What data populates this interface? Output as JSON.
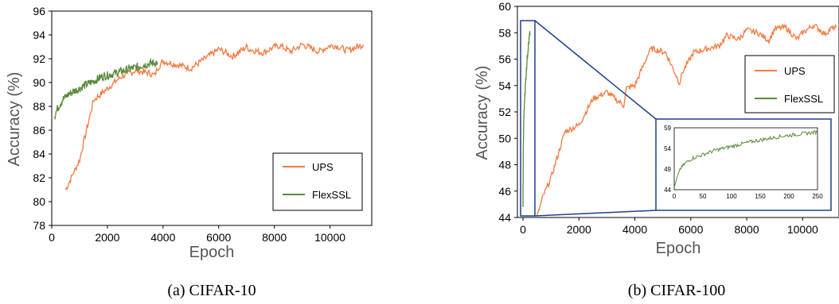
{
  "chart_data": [
    {
      "type": "line",
      "caption": "(a) CIFAR-10",
      "xlabel": "Epoch",
      "ylabel": "Accuracy (%)",
      "xlim": [
        0,
        11500
      ],
      "ylim": [
        78,
        96
      ],
      "xticks": [
        0,
        2000,
        4000,
        6000,
        8000,
        10000
      ],
      "yticks": [
        78,
        80,
        82,
        84,
        86,
        88,
        90,
        92,
        94,
        96
      ],
      "grid": false,
      "legend": "bottom-right",
      "series": [
        {
          "name": "UPS",
          "color": "#f47a40",
          "x": [
            500,
            700,
            1000,
            1500,
            2000,
            2500,
            3000,
            3500,
            3700,
            3800,
            4000,
            4500,
            5000,
            5500,
            6000,
            6100,
            6500,
            7000,
            7100,
            7600,
            8000,
            8200,
            8600,
            9000,
            9200,
            9600,
            10000,
            10200,
            10600,
            11000,
            11200
          ],
          "y": [
            81.0,
            82.0,
            83.5,
            88.5,
            89.5,
            90.5,
            91.0,
            90.8,
            90.6,
            91.2,
            91.8,
            91.5,
            91.2,
            92.0,
            92.8,
            92.7,
            92.2,
            93.0,
            92.8,
            92.5,
            93.0,
            93.1,
            92.6,
            93.2,
            93.0,
            92.6,
            93.1,
            93.1,
            92.7,
            93.0,
            93.2
          ]
        },
        {
          "name": "FlexSSL",
          "color": "#5a8a3a",
          "x": [
            100,
            200,
            400,
            600,
            800,
            1000,
            1200,
            1500,
            1800,
            2000,
            2300,
            2600,
            2900,
            3200,
            3500,
            3800
          ],
          "y": [
            87.2,
            87.8,
            88.6,
            89.0,
            89.3,
            89.5,
            89.8,
            90.1,
            90.5,
            90.6,
            90.8,
            91.0,
            91.2,
            91.4,
            91.6,
            91.7
          ]
        }
      ]
    },
    {
      "type": "line",
      "caption": "(b) CIFAR-100",
      "xlabel": "Epoch",
      "ylabel": "Accuracy (%)",
      "xlim": [
        -200,
        11300
      ],
      "ylim": [
        44,
        60
      ],
      "xticks": [
        0,
        2000,
        4000,
        6000,
        8000,
        10000
      ],
      "yticks": [
        44,
        46,
        48,
        50,
        52,
        54,
        56,
        58,
        60
      ],
      "grid": false,
      "legend": "upper-right",
      "series": [
        {
          "name": "UPS",
          "color": "#f47a40",
          "x": [
            500,
            700,
            1000,
            1500,
            2000,
            2500,
            3000,
            3600,
            3700,
            4000,
            4500,
            4600,
            5100,
            5600,
            5700,
            6100,
            6600,
            7000,
            7300,
            7700,
            8000,
            8400,
            8800,
            9000,
            9400,
            9800,
            10000,
            10400,
            10800,
            11000,
            11200
          ],
          "y": [
            44.0,
            45.5,
            47.0,
            50.5,
            51.0,
            53.0,
            53.5,
            52.5,
            53.8,
            54.0,
            56.5,
            56.8,
            56.5,
            54.2,
            55.0,
            56.5,
            56.8,
            57.0,
            57.8,
            57.5,
            58.2,
            58.0,
            57.4,
            58.3,
            58.4,
            57.5,
            58.0,
            58.6,
            57.9,
            58.3,
            58.4
          ]
        },
        {
          "name": "FlexSSL",
          "color": "#5a8a3a",
          "x": [
            0,
            5,
            10,
            20,
            30,
            50,
            70,
            100,
            130,
            160,
            190,
            220,
            250
          ],
          "y": [
            44.5,
            47.0,
            49.0,
            50.5,
            51.5,
            52.5,
            53.5,
            54.5,
            55.5,
            56.3,
            57.0,
            57.5,
            58.0
          ]
        }
      ],
      "inset": {
        "xlim": [
          0,
          250
        ],
        "ylim": [
          44,
          59
        ],
        "xticks": [
          0,
          50,
          100,
          150,
          200,
          250
        ],
        "yticks": [
          44,
          49,
          54,
          59
        ]
      }
    }
  ]
}
